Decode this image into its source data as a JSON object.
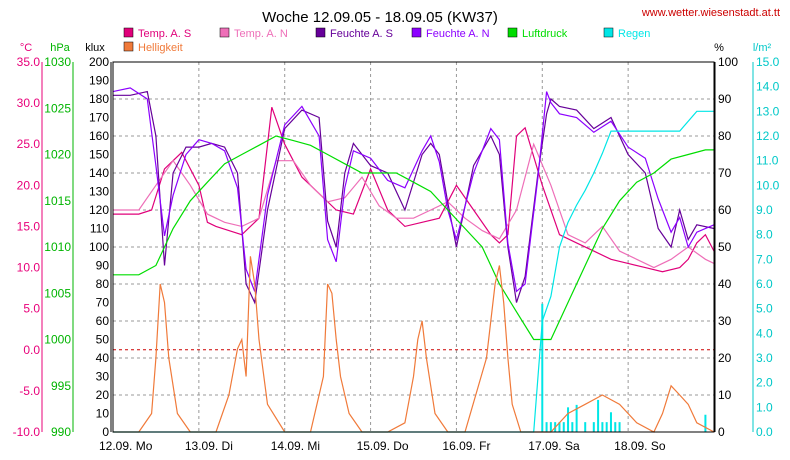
{
  "chart_data": {
    "type": "line",
    "title": "Woche 12.09.05 - 18.09.05 (KW37)",
    "source": "www.wetter.wiesenstadt.at.tt",
    "x_labels": [
      "12.09.  Mo",
      "13.09.  Di",
      "14.09.  Mi",
      "15.09.  Do",
      "16.09.  Fr",
      "17.09.  Sa",
      "18.09.  So"
    ],
    "x_range": [
      0,
      7
    ],
    "axes": {
      "temp": {
        "unit": "°C",
        "range": [
          -10,
          35
        ],
        "ticks": [
          "-10.0",
          "-5.0",
          "0.0",
          "5.0",
          "10.0",
          "15.0",
          "20.0",
          "25.0",
          "30.0",
          "35.0"
        ],
        "color": "#e8007a"
      },
      "press": {
        "unit": "hPa",
        "range": [
          990,
          1030
        ],
        "ticks": [
          "990",
          "995",
          "1000",
          "1005",
          "1010",
          "1015",
          "1020",
          "1025",
          "1030"
        ],
        "color": "#00b400"
      },
      "lux": {
        "unit": "klux",
        "range": [
          0,
          200
        ],
        "ticks": [
          "0",
          "10",
          "20",
          "30",
          "40",
          "50",
          "60",
          "70",
          "80",
          "90",
          "100",
          "110",
          "120",
          "130",
          "140",
          "150",
          "160",
          "170",
          "180",
          "190",
          "200"
        ],
        "color": "#000000"
      },
      "hum": {
        "unit": "%",
        "range": [
          0,
          100
        ],
        "ticks": [
          "0",
          "10",
          "20",
          "30",
          "40",
          "50",
          "60",
          "70",
          "80",
          "90",
          "100"
        ],
        "color": "#000000"
      },
      "rain": {
        "unit": "l/m²",
        "range": [
          0,
          15
        ],
        "ticks": [
          "0.0",
          "1.0",
          "2.0",
          "3.0",
          "4.0",
          "5.0",
          "6.0",
          "7.0",
          "8.0",
          "9.0",
          "10.0",
          "11.0",
          "12.0",
          "13.0",
          "14.0",
          "15.0"
        ],
        "color": "#00c8c8"
      }
    },
    "legend": [
      {
        "name": "Temp. A. S",
        "color": "#e0007a"
      },
      {
        "name": "Temp. A. N",
        "color": "#ee6fb8"
      },
      {
        "name": "Feuchte A. S",
        "color": "#660099"
      },
      {
        "name": "Feuchte A. N",
        "color": "#8c00ff"
      },
      {
        "name": "Luftdruck",
        "color": "#00dd00"
      },
      {
        "name": "Regen",
        "color": "#00e6e6"
      },
      {
        "name": "Helligkeit",
        "color": "#f07a3a"
      }
    ],
    "zero_line": {
      "axis": "temp",
      "value": 0,
      "color": "#cc0000"
    },
    "series": [
      {
        "name": "Temp. A. S",
        "axis": "temp",
        "color": "#e0007a",
        "x": [
          0,
          0.3,
          0.45,
          0.6,
          0.8,
          1.0,
          1.1,
          1.2,
          1.35,
          1.5,
          1.7,
          1.85,
          2.0,
          2.2,
          2.4,
          2.6,
          2.8,
          3.0,
          3.2,
          3.4,
          3.6,
          3.8,
          4.0,
          4.2,
          4.4,
          4.5,
          4.6,
          4.7,
          4.8,
          5.0,
          5.2,
          5.4,
          5.6,
          5.8,
          6.0,
          6.2,
          6.4,
          6.6,
          6.7,
          6.8,
          6.9,
          7.0
        ],
        "y": [
          16.5,
          16.5,
          17,
          22,
          24,
          20,
          15.5,
          15,
          14.5,
          14,
          16,
          29.5,
          25,
          21,
          19,
          17,
          16.5,
          22,
          17,
          15,
          15.5,
          16,
          20,
          17,
          14,
          13,
          14,
          26,
          27,
          20,
          14,
          13,
          12,
          11,
          10.5,
          10,
          9.5,
          10,
          11,
          13,
          14,
          12
        ]
      },
      {
        "name": "Temp. A. N",
        "axis": "temp",
        "color": "#ee6fb8",
        "x": [
          0,
          0.3,
          0.5,
          0.7,
          0.9,
          1.1,
          1.3,
          1.5,
          1.7,
          1.9,
          2.1,
          2.3,
          2.5,
          2.7,
          2.9,
          3.1,
          3.3,
          3.5,
          3.7,
          3.9,
          4.1,
          4.3,
          4.5,
          4.7,
          4.9,
          5.1,
          5.3,
          5.5,
          5.7,
          5.9,
          6.1,
          6.3,
          6.5,
          6.7,
          6.9,
          7.0
        ],
        "y": [
          17,
          17,
          20,
          23,
          20,
          16.5,
          15.5,
          15,
          16,
          23,
          23,
          20,
          18,
          18.5,
          21,
          17.5,
          16,
          16,
          17,
          18,
          16,
          14.5,
          13.5,
          17,
          25,
          20,
          14,
          13,
          15,
          12,
          11,
          10,
          11,
          12.5,
          11,
          10.5
        ]
      },
      {
        "name": "Feuchte A. S",
        "axis": "hum",
        "color": "#660099",
        "x": [
          0,
          0.2,
          0.4,
          0.5,
          0.6,
          0.7,
          0.85,
          1.0,
          1.15,
          1.3,
          1.45,
          1.55,
          1.65,
          1.8,
          2.0,
          2.2,
          2.4,
          2.5,
          2.6,
          2.7,
          2.8,
          3.0,
          3.2,
          3.4,
          3.6,
          3.7,
          3.8,
          3.9,
          4.0,
          4.2,
          4.4,
          4.5,
          4.6,
          4.7,
          4.8,
          4.95,
          5.05,
          5.1,
          5.2,
          5.4,
          5.6,
          5.8,
          6.0,
          6.2,
          6.35,
          6.5,
          6.6,
          6.7,
          6.8,
          7.0
        ],
        "y": [
          91,
          91,
          92,
          80,
          45,
          70,
          77,
          77,
          78,
          77,
          70,
          40,
          35,
          60,
          82,
          87,
          85,
          57,
          50,
          70,
          78,
          72,
          70,
          60,
          75,
          78,
          75,
          62,
          50,
          72,
          80,
          75,
          50,
          35,
          42,
          70,
          86,
          90,
          88,
          87,
          82,
          85,
          75,
          70,
          55,
          50,
          60,
          52,
          56,
          55
        ]
      },
      {
        "name": "Feuchte A. N",
        "axis": "hum",
        "color": "#8c00ff",
        "x": [
          0,
          0.2,
          0.4,
          0.5,
          0.6,
          0.7,
          0.85,
          1.0,
          1.15,
          1.3,
          1.45,
          1.55,
          1.65,
          1.8,
          2.0,
          2.2,
          2.4,
          2.5,
          2.6,
          2.7,
          2.8,
          3.0,
          3.2,
          3.4,
          3.6,
          3.7,
          3.8,
          3.9,
          4.0,
          4.2,
          4.4,
          4.5,
          4.6,
          4.7,
          4.8,
          4.95,
          5.05,
          5.1,
          5.2,
          5.4,
          5.6,
          5.8,
          6.0,
          6.2,
          6.35,
          6.5,
          6.6,
          6.7,
          6.8,
          7.0
        ],
        "y": [
          92,
          93,
          90,
          72,
          53,
          64,
          75,
          79,
          78,
          76,
          66,
          44,
          38,
          64,
          83,
          88,
          80,
          52,
          46,
          66,
          76,
          74,
          68,
          66,
          76,
          80,
          73,
          60,
          52,
          70,
          82,
          79,
          51,
          38,
          40,
          69,
          92,
          89,
          86,
          85,
          81,
          84,
          77,
          74,
          63,
          54,
          58,
          50,
          54,
          56
        ]
      },
      {
        "name": "Luftdruck",
        "axis": "press",
        "color": "#00dd00",
        "x": [
          0,
          0.3,
          0.5,
          0.7,
          0.9,
          1.1,
          1.3,
          1.5,
          1.7,
          1.9,
          2.1,
          2.3,
          2.5,
          2.7,
          2.9,
          3.1,
          3.3,
          3.5,
          3.7,
          3.9,
          4.1,
          4.3,
          4.5,
          4.7,
          4.9,
          5.1,
          5.3,
          5.5,
          5.7,
          5.9,
          6.1,
          6.3,
          6.5,
          6.7,
          6.9,
          7.0
        ],
        "y": [
          1007,
          1007,
          1008,
          1012,
          1015,
          1017,
          1019,
          1020,
          1021,
          1022,
          1021.5,
          1021,
          1020,
          1019,
          1018,
          1018,
          1018,
          1017,
          1016,
          1014,
          1012,
          1010,
          1006,
          1003,
          1000,
          1000,
          1004,
          1008,
          1012,
          1015,
          1017,
          1018,
          1019.5,
          1020,
          1020.5,
          1020.5
        ]
      },
      {
        "name": "Helligkeit",
        "axis": "lux",
        "color": "#f07a3a",
        "x": [
          0,
          0.3,
          0.45,
          0.5,
          0.55,
          0.6,
          0.65,
          0.75,
          0.9,
          1.2,
          1.35,
          1.45,
          1.5,
          1.55,
          1.6,
          1.65,
          1.7,
          1.8,
          2.0,
          2.3,
          2.45,
          2.5,
          2.55,
          2.6,
          2.65,
          2.75,
          2.9,
          3.2,
          3.4,
          3.5,
          3.55,
          3.6,
          3.65,
          3.75,
          3.9,
          4.1,
          4.35,
          4.45,
          4.5,
          4.55,
          4.6,
          4.65,
          4.75,
          4.9,
          5.1,
          5.3,
          5.5,
          5.7,
          5.9,
          6.1,
          6.3,
          6.4,
          6.5,
          6.6,
          6.7,
          6.8,
          7.0
        ],
        "y": [
          0,
          0,
          10,
          40,
          80,
          70,
          40,
          10,
          0,
          0,
          20,
          45,
          50,
          30,
          95,
          80,
          50,
          15,
          0,
          0,
          30,
          80,
          75,
          50,
          30,
          10,
          0,
          0,
          5,
          30,
          50,
          60,
          40,
          10,
          0,
          0,
          40,
          80,
          90,
          70,
          40,
          15,
          0,
          0,
          0,
          10,
          15,
          20,
          15,
          5,
          0,
          10,
          25,
          20,
          15,
          5,
          0
        ]
      },
      {
        "name": "Regen",
        "axis": "rain",
        "color": "#00e6e6",
        "x": [
          0,
          4.9,
          5.0,
          5.1,
          5.2,
          5.3,
          5.4,
          5.5,
          5.6,
          5.7,
          5.8,
          5.9,
          6.0,
          6.2,
          6.4,
          6.6,
          6.8,
          7.0
        ],
        "y": [
          0,
          0,
          4.5,
          5.5,
          7.5,
          8.5,
          9.2,
          9.8,
          10.5,
          11.3,
          12.2,
          12.2,
          12.2,
          12.2,
          12.2,
          12.2,
          13.0,
          13.0
        ]
      }
    ],
    "rain_bars": {
      "axis": "rain",
      "color": "#00e6e6",
      "x": [
        5.0,
        5.05,
        5.1,
        5.15,
        5.2,
        5.25,
        5.3,
        5.35,
        5.4,
        5.5,
        5.6,
        5.65,
        5.7,
        5.75,
        5.8,
        5.85,
        5.9,
        6.9
      ],
      "y": [
        5.2,
        0.4,
        0.4,
        0.4,
        0.4,
        0.4,
        1.0,
        0.4,
        1.1,
        0.4,
        0.4,
        1.3,
        0.4,
        0.4,
        0.8,
        0.4,
        0.4,
        0.7
      ]
    }
  }
}
